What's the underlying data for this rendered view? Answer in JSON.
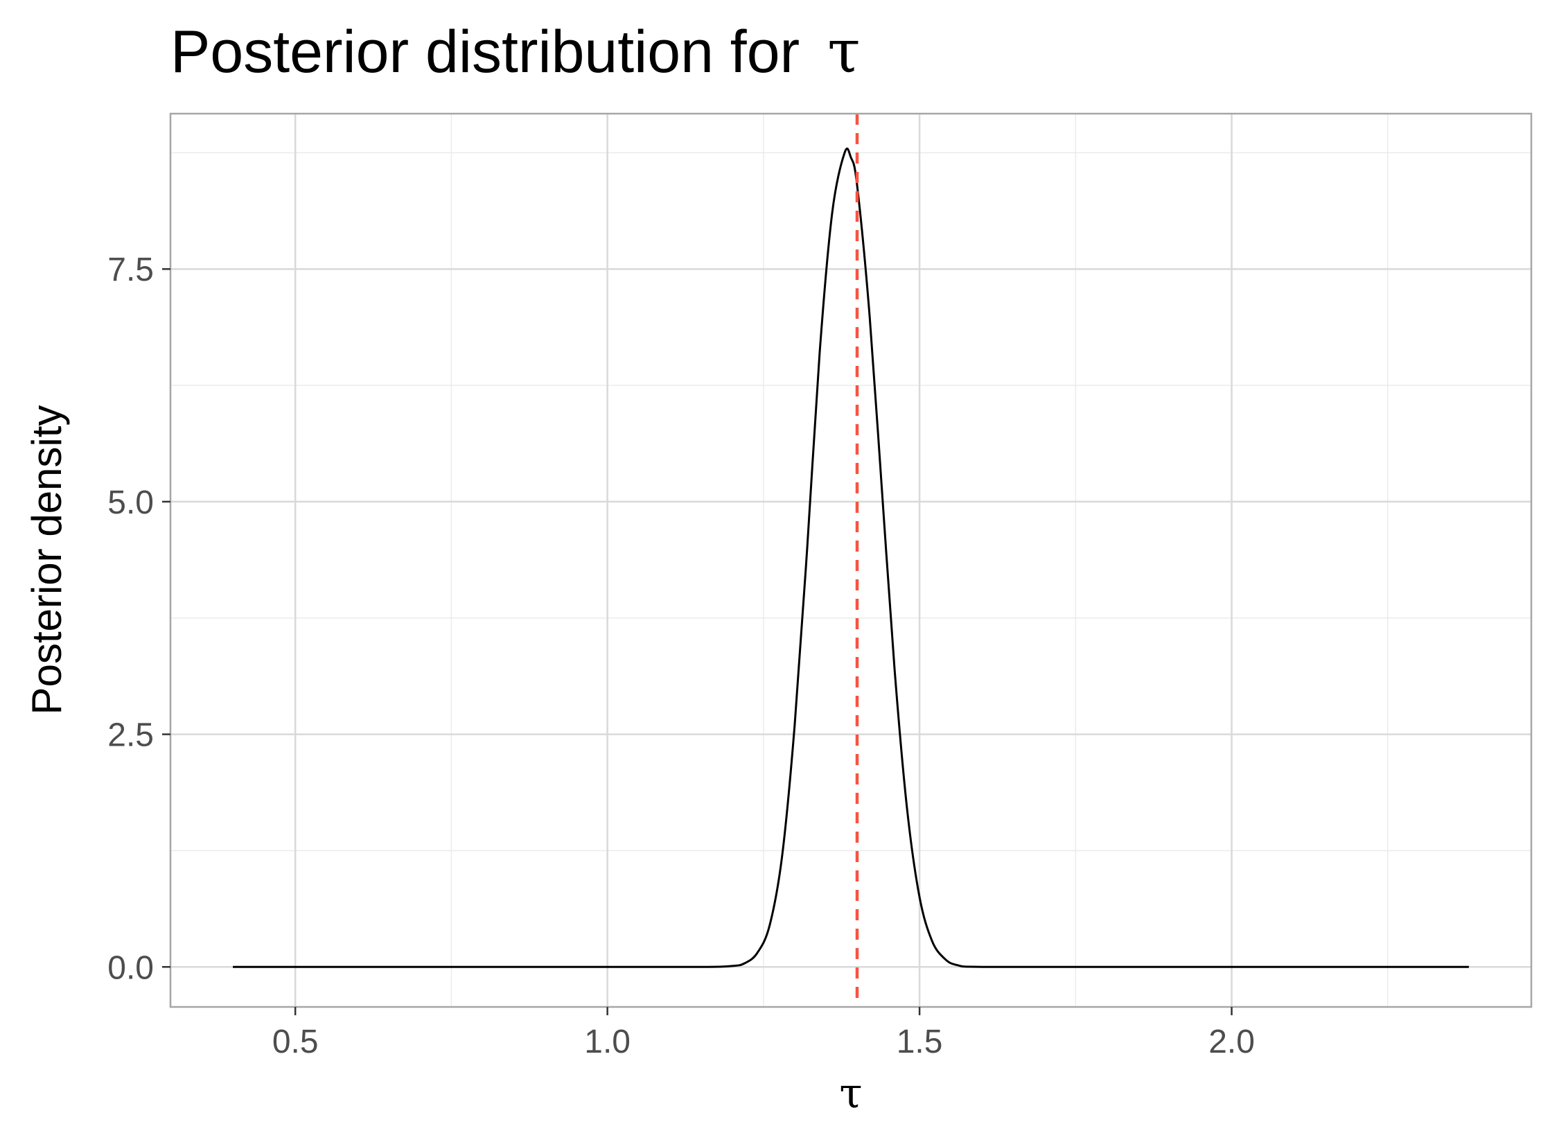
{
  "chart_data": {
    "type": "line",
    "title": "Posterior distribution for",
    "title_symbol": "τ",
    "xlabel": "τ",
    "ylabel": "Posterior density",
    "xlim": [
      0.3,
      2.48
    ],
    "ylim": [
      -0.43,
      9.17
    ],
    "x_ticks": [
      0.5,
      1.0,
      1.5,
      2.0
    ],
    "x_tick_labels": [
      "0.5",
      "1.0",
      "1.5",
      "2.0"
    ],
    "x_minor_ticks": [
      0.75,
      1.25,
      1.75,
      2.25
    ],
    "y_ticks": [
      0.0,
      2.5,
      5.0,
      7.5
    ],
    "y_tick_labels": [
      "0.0",
      "2.5",
      "5.0",
      "7.5"
    ],
    "y_minor_ticks": [
      1.25,
      3.75,
      6.25,
      8.75
    ],
    "grid": true,
    "series": [
      {
        "style": "solid",
        "color": "#000000",
        "x": [
          0.4,
          1.0,
          1.15,
          1.2,
          1.22,
          1.24,
          1.26,
          1.28,
          1.3,
          1.32,
          1.34,
          1.36,
          1.38,
          1.39,
          1.4,
          1.42,
          1.44,
          1.46,
          1.48,
          1.5,
          1.52,
          1.54,
          1.56,
          1.6,
          1.8,
          2.38
        ],
        "values": [
          0.0,
          0.0,
          0.0,
          0.01,
          0.04,
          0.15,
          0.45,
          1.2,
          2.6,
          4.5,
          6.6,
          8.1,
          8.75,
          8.7,
          8.4,
          7.0,
          5.1,
          3.2,
          1.7,
          0.75,
          0.28,
          0.09,
          0.02,
          0.0,
          0.0,
          0.0
        ]
      }
    ],
    "reference_line": {
      "orientation": "vertical",
      "x": 1.4,
      "style": "dashed",
      "color": "#f8533f"
    },
    "colors": {
      "panel_border": "#a6a6a6",
      "grid_major": "#d9d9d9",
      "grid_minor": "#ebebeb",
      "tick_text": "#4d4d4d"
    }
  }
}
